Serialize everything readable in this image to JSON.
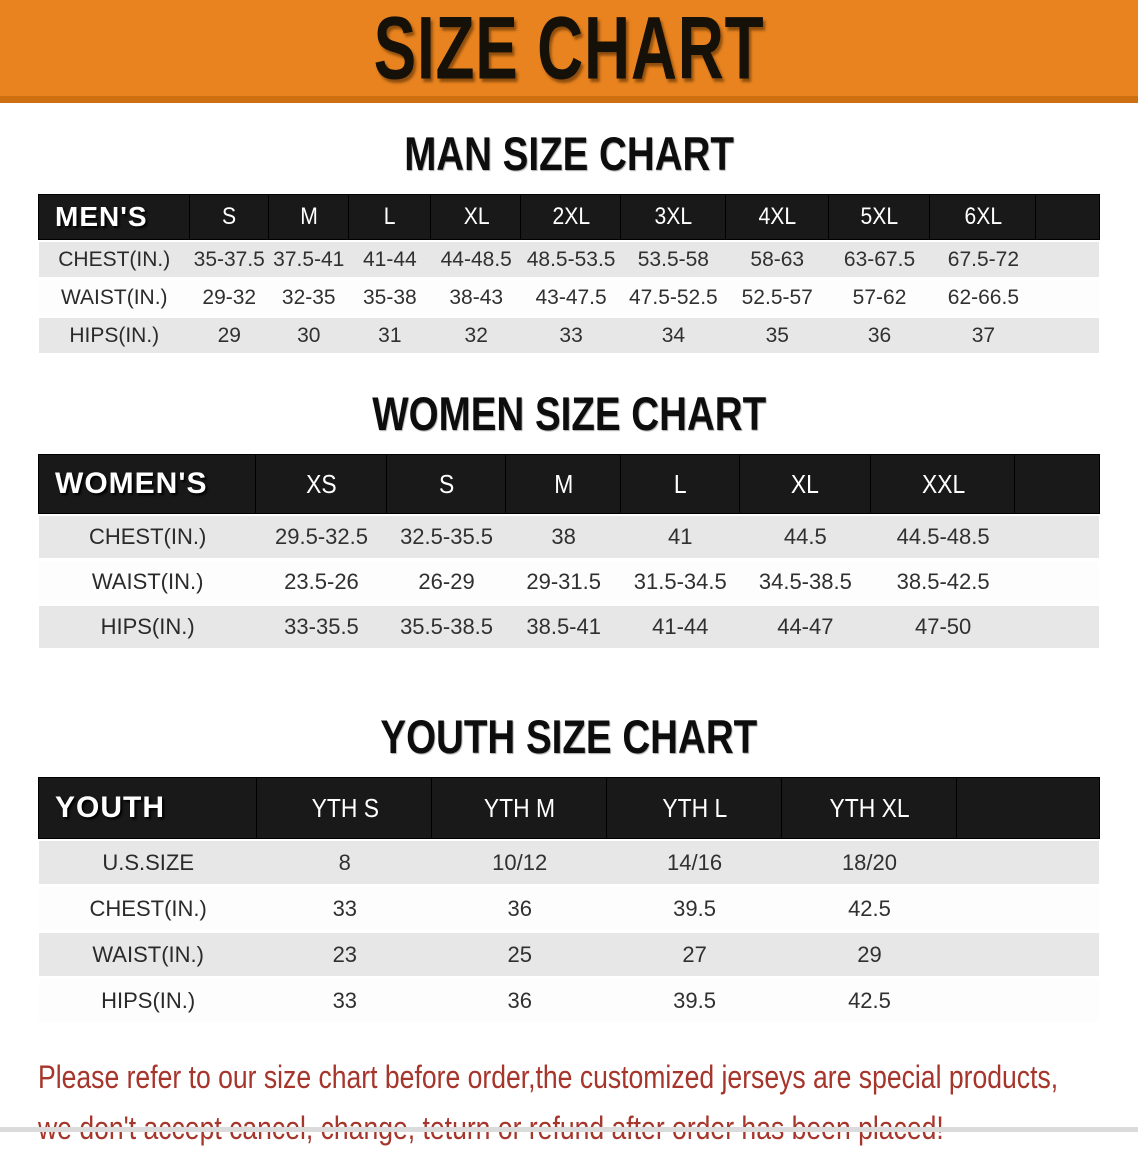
{
  "banner": {
    "title": "SIZE CHART"
  },
  "sections": [
    {
      "heading": "MAN SIZE CHART",
      "table": {
        "label": "MEN'S",
        "columns": [
          "S",
          "M",
          "L",
          "XL",
          "2XL",
          "3XL",
          "4XL",
          "5XL",
          "6XL"
        ],
        "rows": [
          {
            "label": "CHEST(IN.)",
            "values": [
              "35-37.5",
              "37.5-41",
              "41-44",
              "44-48.5",
              "48.5-53.5",
              "53.5-58",
              "58-63",
              "63-67.5",
              "67.5-72"
            ]
          },
          {
            "label": "WAIST(IN.)",
            "values": [
              "29-32",
              "32-35",
              "35-38",
              "38-43",
              "43-47.5",
              "47.5-52.5",
              "52.5-57",
              "57-62",
              "62-66.5"
            ]
          },
          {
            "label": "HIPS(IN.)",
            "values": [
              "29",
              "30",
              "31",
              "32",
              "33",
              "34",
              "35",
              "36",
              "37"
            ]
          }
        ]
      }
    },
    {
      "heading": "WOMEN SIZE CHART",
      "table": {
        "label": "WOMEN'S",
        "columns": [
          "XS",
          "S",
          "M",
          "L",
          "XL",
          "XXL"
        ],
        "rows": [
          {
            "label": "CHEST(IN.)",
            "values": [
              "29.5-32.5",
              "32.5-35.5",
              "38",
              "41",
              "44.5",
              "44.5-48.5"
            ]
          },
          {
            "label": "WAIST(IN.)",
            "values": [
              "23.5-26",
              "26-29",
              "29-31.5",
              "31.5-34.5",
              "34.5-38.5",
              "38.5-42.5"
            ]
          },
          {
            "label": "HIPS(IN.)",
            "values": [
              "33-35.5",
              "35.5-38.5",
              "38.5-41",
              "41-44",
              "44-47",
              "47-50"
            ]
          }
        ]
      }
    },
    {
      "heading": "YOUTH SIZE CHART",
      "table": {
        "label": "YOUTH",
        "columns": [
          "YTH S",
          "YTH M",
          "YTH L",
          "YTH XL"
        ],
        "rows": [
          {
            "label": "U.S.SIZE",
            "values": [
              "8",
              "10/12",
              "14/16",
              "18/20"
            ]
          },
          {
            "label": "CHEST(IN.)",
            "values": [
              "33",
              "36",
              "39.5",
              "42.5"
            ]
          },
          {
            "label": "WAIST(IN.)",
            "values": [
              "23",
              "25",
              "27",
              "29"
            ]
          },
          {
            "label": "HIPS(IN.)",
            "values": [
              "33",
              "36",
              "39.5",
              "42.5"
            ]
          }
        ]
      }
    }
  ],
  "note": {
    "line1": "Please refer to our size chart before order,the customized jerseys are special products,",
    "line2": "we don't accept cancel, change, teturn or refund after order has been placed!"
  },
  "colors": {
    "banner_orange": "#E8831F",
    "banner_edge": "#CE6F12",
    "header_black": "#191919",
    "row_gray": "#E7E7E7",
    "note_red": "#A6352B"
  }
}
